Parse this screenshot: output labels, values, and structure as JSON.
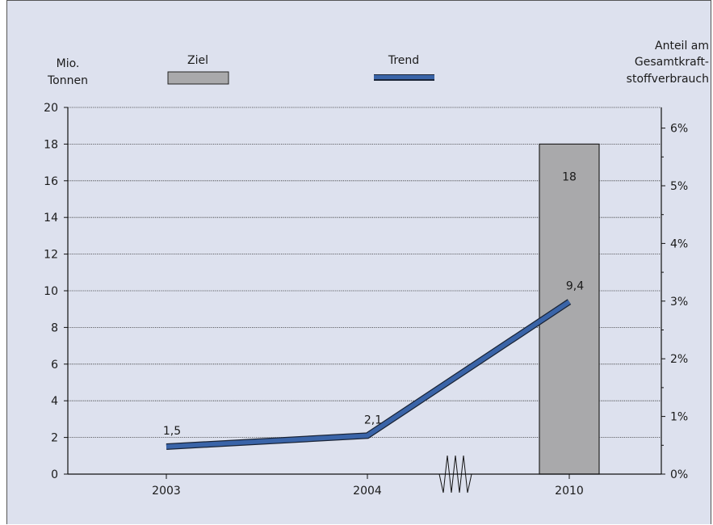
{
  "chart_data": {
    "type": "bar+line",
    "left_axis_label": [
      "Mio.",
      "Tonnen"
    ],
    "right_axis_label": [
      "Anteil am",
      "Gesamtkraft-",
      "stoffverbrauch"
    ],
    "categories": [
      "2003",
      "2004",
      "2010"
    ],
    "y_ticks": [
      "0",
      "2",
      "4",
      "6",
      "8",
      "10",
      "12",
      "14",
      "16",
      "18",
      "20"
    ],
    "y2_ticks": [
      "0%",
      "1%",
      "2%",
      "3%",
      "4%",
      "5%",
      "6%"
    ],
    "ylim": [
      0,
      20
    ],
    "y2lim_percent": [
      0,
      6
    ],
    "grid": "horizontal dotted",
    "axis_break_between": [
      "2004",
      "2010"
    ],
    "series": [
      {
        "name": "Ziel",
        "type": "bar",
        "color": "#a9a9ab",
        "points": [
          {
            "x": "2010",
            "y": 18,
            "label": "18"
          }
        ]
      },
      {
        "name": "Trend",
        "type": "line",
        "color": "#3a64a8",
        "points": [
          {
            "x": "2003",
            "y": 1.5,
            "label": "1,5"
          },
          {
            "x": "2004",
            "y": 2.1,
            "label": "2,1"
          },
          {
            "x": "2010",
            "y": 9.4,
            "label": "9,4"
          }
        ]
      }
    ]
  }
}
